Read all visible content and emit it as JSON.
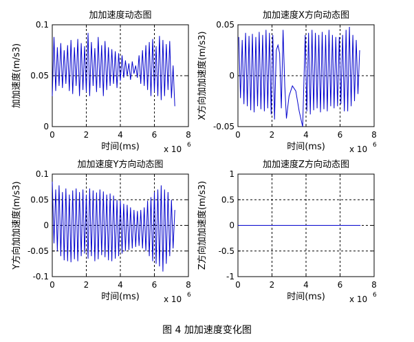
{
  "figure_caption": "图 4  加加速度变化图",
  "chart_data": [
    {
      "id": "total",
      "type": "line",
      "title": "加加速度动态图",
      "xlabel": "时间(ms)",
      "ylabel": "加加速度(m/s3)",
      "x_exponent_label": "x 10",
      "x_exponent": "6",
      "xlim": [
        0,
        8
      ],
      "ylim": [
        0,
        0.1
      ],
      "xticks": [
        "0",
        "2",
        "4",
        "6",
        "8"
      ],
      "yticks": [
        "0",
        "0.05",
        "0.1"
      ],
      "ytick_values": [
        0,
        0.05,
        0.1
      ],
      "grid": true,
      "line_color": "#0000cc",
      "series": [
        {
          "x": [
            0,
            0.1,
            0.2,
            0.3,
            0.4,
            0.5,
            0.6,
            0.7,
            0.8,
            0.9,
            1.0,
            1.1,
            1.2,
            1.3,
            1.4,
            1.5,
            1.6,
            1.7,
            1.8,
            1.9,
            2.0,
            2.1,
            2.2,
            2.3,
            2.4,
            2.5,
            2.6,
            2.7,
            2.8,
            2.9,
            3.0,
            3.1,
            3.2,
            3.3,
            3.4,
            3.5,
            3.6,
            3.7,
            3.8,
            3.9,
            4.0,
            4.1,
            4.2,
            4.3,
            4.4,
            4.5,
            4.6,
            4.7,
            4.8,
            4.9,
            5.0,
            5.1,
            5.2,
            5.3,
            5.4,
            5.5,
            5.6,
            5.7,
            5.8,
            5.9,
            6.0,
            6.1,
            6.2,
            6.3,
            6.4,
            6.5,
            6.6,
            6.7,
            6.8,
            6.9,
            7.0,
            7.1,
            7.2
          ],
          "y": [
            0.03,
            0.088,
            0.035,
            0.078,
            0.04,
            0.082,
            0.038,
            0.075,
            0.042,
            0.08,
            0.035,
            0.085,
            0.032,
            0.078,
            0.04,
            0.086,
            0.03,
            0.082,
            0.036,
            0.079,
            0.034,
            0.092,
            0.03,
            0.083,
            0.04,
            0.077,
            0.034,
            0.088,
            0.038,
            0.08,
            0.03,
            0.084,
            0.036,
            0.078,
            0.04,
            0.076,
            0.042,
            0.074,
            0.038,
            0.072,
            0.045,
            0.07,
            0.048,
            0.065,
            0.05,
            0.062,
            0.046,
            0.064,
            0.052,
            0.06,
            0.048,
            0.07,
            0.042,
            0.075,
            0.04,
            0.08,
            0.036,
            0.083,
            0.03,
            0.086,
            0.034,
            0.079,
            0.03,
            0.089,
            0.026,
            0.085,
            0.03,
            0.081,
            0.036,
            0.084,
            0.028,
            0.06,
            0.02
          ]
        }
      ]
    },
    {
      "id": "x",
      "type": "line",
      "title": "加加速度X方向动态图",
      "xlabel": "时间(ms)",
      "ylabel": "X方向加加速度(m/s3)",
      "x_exponent_label": "x 10",
      "x_exponent": "6",
      "xlim": [
        0,
        8
      ],
      "ylim": [
        -0.05,
        0.05
      ],
      "xticks": [
        "0",
        "2",
        "4",
        "6",
        "8"
      ],
      "yticks": [
        "-0.05",
        "0",
        "0.05"
      ],
      "ytick_values": [
        -0.05,
        0,
        0.05
      ],
      "grid": true,
      "line_color": "#0000cc",
      "series": [
        {
          "x": [
            0.05,
            0.15,
            0.25,
            0.35,
            0.45,
            0.55,
            0.65,
            0.75,
            0.85,
            0.95,
            1.05,
            1.15,
            1.25,
            1.35,
            1.45,
            1.55,
            1.65,
            1.75,
            1.85,
            1.95,
            2.05,
            2.15,
            2.25,
            2.35,
            2.45,
            2.55,
            2.65,
            2.75,
            2.85,
            3.0,
            3.2,
            3.4,
            3.6,
            3.8,
            3.95,
            4.05,
            4.15,
            4.25,
            4.35,
            4.45,
            4.55,
            4.65,
            4.75,
            4.85,
            4.95,
            5.05,
            5.15,
            5.25,
            5.35,
            5.45,
            5.55,
            5.65,
            5.75,
            5.85,
            5.95,
            6.05,
            6.15,
            6.25,
            6.35,
            6.45,
            6.55,
            6.65,
            6.75,
            6.85,
            6.95,
            7.05,
            7.15
          ],
          "y": [
            0.038,
            -0.022,
            0.035,
            -0.028,
            0.042,
            -0.03,
            0.039,
            -0.034,
            0.041,
            -0.036,
            0.038,
            -0.03,
            0.043,
            -0.033,
            0.04,
            -0.035,
            0.045,
            -0.032,
            0.042,
            -0.038,
            0.04,
            -0.043,
            0.025,
            0.03,
            0.022,
            -0.032,
            0.045,
            -0.01,
            -0.042,
            -0.02,
            -0.01,
            -0.015,
            -0.035,
            -0.05,
            0.04,
            -0.035,
            0.042,
            -0.038,
            0.045,
            -0.034,
            0.042,
            -0.032,
            0.04,
            -0.036,
            0.043,
            -0.033,
            0.04,
            -0.035,
            0.045,
            -0.03,
            0.04,
            -0.032,
            0.038,
            -0.03,
            0.038,
            -0.028,
            0.04,
            -0.035,
            0.045,
            -0.035,
            0.048,
            -0.03,
            0.04,
            -0.025,
            0.035,
            -0.018,
            0.025
          ]
        }
      ]
    },
    {
      "id": "y",
      "type": "line",
      "title": "加加速度Y方向动态图",
      "xlabel": "时间(ms)",
      "ylabel": "Y方向加加速度(m/s3)",
      "x_exponent_label": "x 10",
      "x_exponent": "6",
      "xlim": [
        0,
        8
      ],
      "ylim": [
        -0.1,
        0.1
      ],
      "xticks": [
        "0",
        "2",
        "4",
        "6",
        "8"
      ],
      "yticks": [
        "-0.1",
        "-0.05",
        "0",
        "0.05",
        "0.1"
      ],
      "ytick_values": [
        -0.1,
        -0.05,
        0,
        0.05,
        0.1
      ],
      "grid": true,
      "line_color": "#0000cc",
      "series": [
        {
          "x": [
            0,
            0.1,
            0.2,
            0.3,
            0.4,
            0.5,
            0.6,
            0.7,
            0.8,
            0.9,
            1.0,
            1.1,
            1.2,
            1.3,
            1.4,
            1.5,
            1.6,
            1.7,
            1.8,
            1.9,
            2.0,
            2.1,
            2.2,
            2.3,
            2.4,
            2.5,
            2.6,
            2.7,
            2.8,
            2.9,
            3.0,
            3.1,
            3.2,
            3.3,
            3.4,
            3.5,
            3.6,
            3.7,
            3.8,
            3.9,
            4.0,
            4.1,
            4.2,
            4.3,
            4.4,
            4.5,
            4.6,
            4.7,
            4.8,
            4.9,
            5.0,
            5.1,
            5.2,
            5.3,
            5.4,
            5.5,
            5.6,
            5.7,
            5.8,
            5.9,
            6.0,
            6.1,
            6.2,
            6.3,
            6.4,
            6.5,
            6.6,
            6.7,
            6.8,
            6.9,
            7.0,
            7.1,
            7.2
          ],
          "y": [
            0.085,
            -0.035,
            0.07,
            -0.05,
            0.078,
            -0.06,
            0.065,
            -0.068,
            0.072,
            -0.07,
            0.06,
            -0.072,
            0.068,
            -0.066,
            0.072,
            -0.07,
            0.065,
            -0.06,
            0.07,
            -0.055,
            0.06,
            -0.065,
            0.072,
            -0.06,
            0.068,
            -0.07,
            0.064,
            -0.066,
            0.07,
            -0.058,
            0.066,
            -0.062,
            0.06,
            -0.068,
            0.062,
            -0.07,
            0.058,
            -0.065,
            0.05,
            -0.06,
            0.048,
            -0.055,
            0.042,
            -0.05,
            0.04,
            -0.048,
            0.035,
            -0.045,
            0.03,
            -0.042,
            0.028,
            -0.04,
            0.03,
            -0.045,
            0.035,
            -0.05,
            0.048,
            -0.06,
            0.055,
            -0.07,
            0.065,
            -0.075,
            0.07,
            -0.08,
            0.078,
            -0.09,
            0.07,
            -0.075,
            0.065,
            -0.06,
            0.05,
            -0.045,
            0.03
          ]
        }
      ]
    },
    {
      "id": "z",
      "type": "line",
      "title": "加加速度Z方向动态图",
      "xlabel": "时间(ms)",
      "ylabel": "Z方向加加速度(m/s3)",
      "x_exponent_label": "x 10",
      "x_exponent": "6",
      "xlim": [
        0,
        8
      ],
      "ylim": [
        -1,
        1
      ],
      "xticks": [
        "0",
        "2",
        "4",
        "6",
        "8"
      ],
      "yticks": [
        "-1",
        "-0.5",
        "0",
        "0.5",
        "1"
      ],
      "ytick_values": [
        -1,
        -0.5,
        0,
        0.5,
        1
      ],
      "grid": true,
      "line_color": "#0000cc",
      "series": [
        {
          "x": [
            0,
            7.2
          ],
          "y": [
            0,
            0
          ]
        }
      ]
    }
  ]
}
